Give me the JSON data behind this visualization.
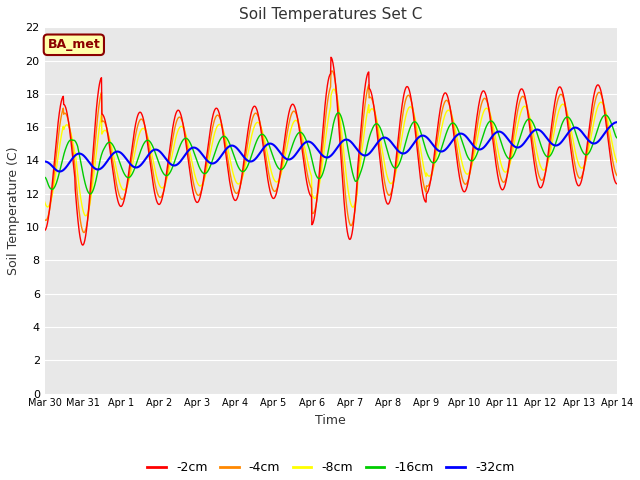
{
  "title": "Soil Temperatures Set C",
  "xlabel": "Time",
  "ylabel": "Soil Temperature (C)",
  "ylim": [
    0,
    22
  ],
  "yticks": [
    0,
    2,
    4,
    6,
    8,
    10,
    12,
    14,
    16,
    18,
    20,
    22
  ],
  "fig_bg": "#ffffff",
  "plot_bg": "#e8e8e8",
  "annotation_text": "BA_met",
  "annotation_bg": "#ffffaa",
  "annotation_border": "#8b0000",
  "annotation_text_color": "#8b0000",
  "series_colors": {
    "-2cm": "#ff0000",
    "-4cm": "#ff8800",
    "-8cm": "#ffff00",
    "-16cm": "#00cc00",
    "-32cm": "#0000ff"
  },
  "n_days": 15,
  "tick_labels": [
    "Mar 30",
    "Mar 31",
    "Apr 1",
    "Apr 2",
    "Apr 3",
    "Apr 4",
    "Apr 5",
    "Apr 6",
    "Apr 7",
    "Apr 8",
    "Apr 9",
    "Apr 10",
    "Apr 11",
    "Apr 12",
    "Apr 13",
    "Apr 14"
  ]
}
